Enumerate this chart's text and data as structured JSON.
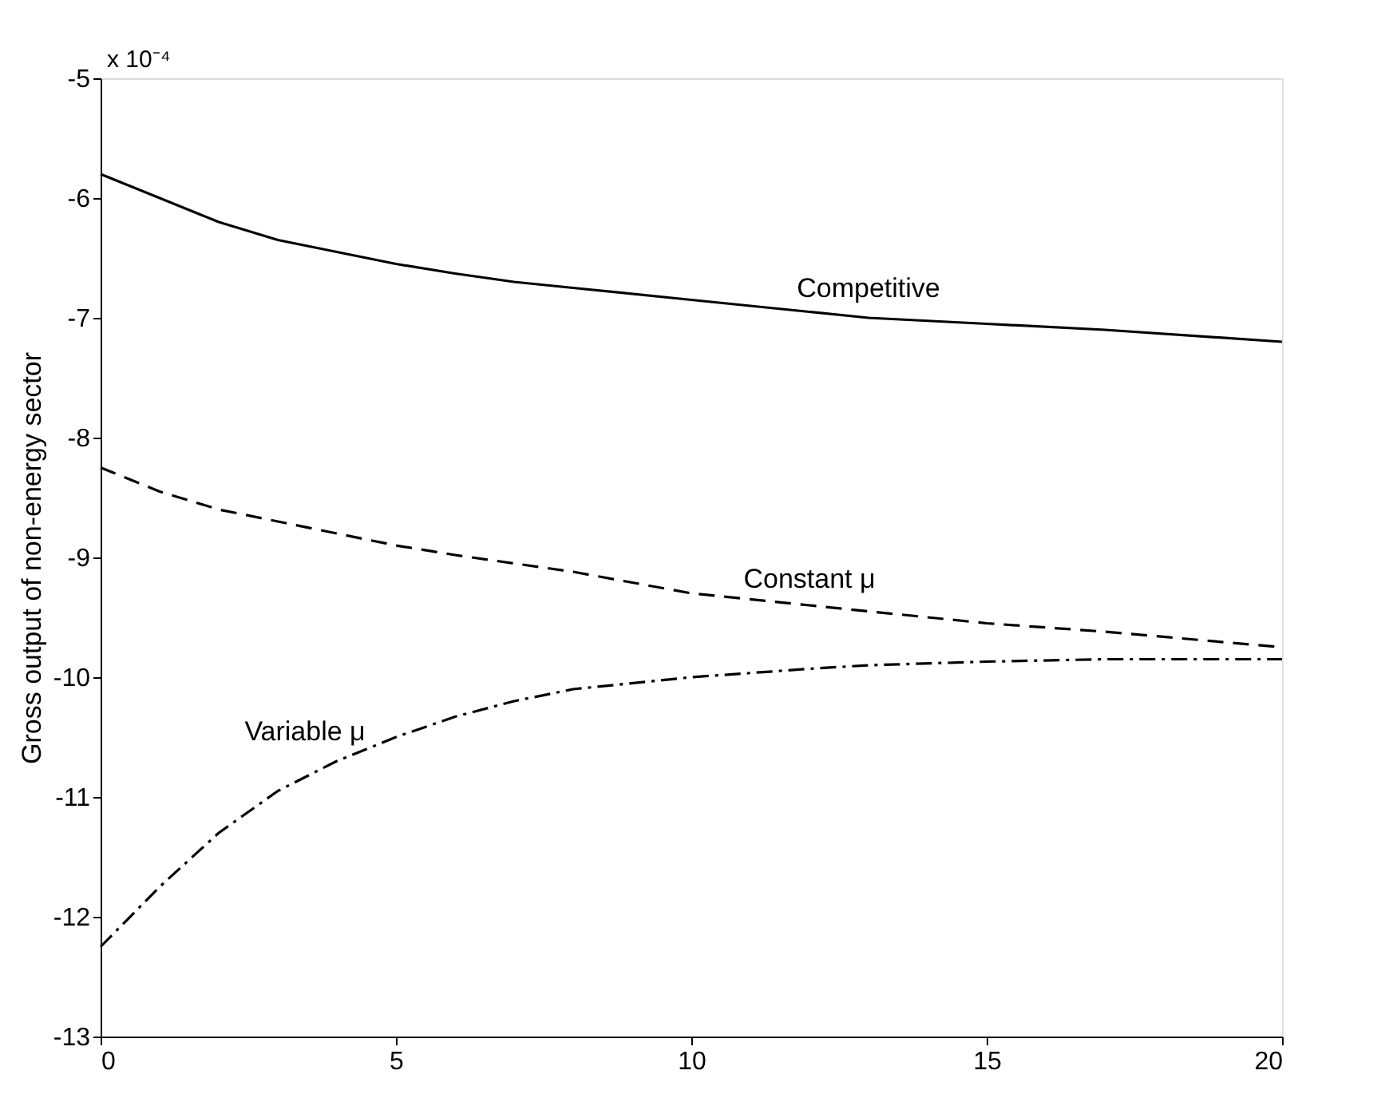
{
  "chart_data": {
    "type": "line",
    "ylabel": "Gross output of non-energy sector",
    "x": [
      0,
      1,
      2,
      3,
      4,
      5,
      6,
      7,
      8,
      10,
      12,
      13,
      15,
      17,
      20
    ],
    "series": [
      {
        "name": "Competitive",
        "color": "#000000",
        "line_style": "solid",
        "values": [
          -5.8,
          -6.0,
          -6.2,
          -6.35,
          -6.45,
          -6.55,
          -6.63,
          -6.7,
          -6.75,
          -6.85,
          -6.95,
          -7.0,
          -7.05,
          -7.1,
          -7.2
        ]
      },
      {
        "name": "Constant μ",
        "color": "#000000",
        "line_style": "dashed",
        "values": [
          -8.25,
          -8.45,
          -8.6,
          -8.7,
          -8.8,
          -8.9,
          -8.98,
          -9.05,
          -9.12,
          -9.3,
          -9.4,
          -9.45,
          -9.55,
          -9.62,
          -9.75
        ]
      },
      {
        "name": "Variable μ",
        "color": "#000000",
        "line_style": "dashdot",
        "values": [
          -12.25,
          -11.75,
          -11.3,
          -10.95,
          -10.7,
          -10.5,
          -10.33,
          -10.2,
          -10.1,
          -10.0,
          -9.93,
          -9.9,
          -9.87,
          -9.85,
          -9.85
        ]
      }
    ],
    "xlim": [
      0,
      20
    ],
    "xticks": [
      0,
      5,
      10,
      15,
      20
    ],
    "ylim": [
      -13,
      -5
    ],
    "yticks": [
      -13,
      -12,
      -11,
      -10,
      -9,
      -8,
      -7,
      -6,
      -5
    ],
    "annotations": [
      "x 10⁻⁴"
    ],
    "grid": false
  }
}
